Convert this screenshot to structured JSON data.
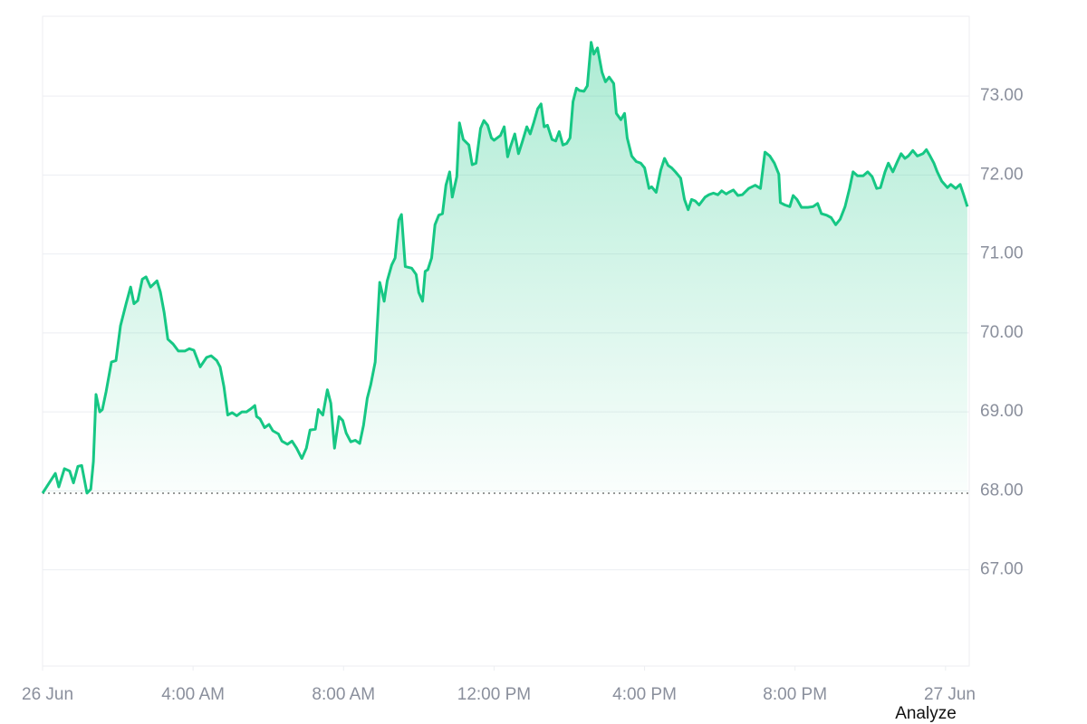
{
  "chart_data": {
    "type": "line",
    "color": "#16c784",
    "grid": true,
    "baseline": 67.97,
    "xlim": [
      0,
      24.63
    ],
    "ylim": [
      65.78,
      74.01
    ],
    "xticks": [
      {
        "value": 0,
        "label": "26 Jun"
      },
      {
        "value": 4,
        "label": "4:00 AM"
      },
      {
        "value": 8,
        "label": "8:00 AM"
      },
      {
        "value": 12,
        "label": "12:00 PM"
      },
      {
        "value": 16,
        "label": "4:00 PM"
      },
      {
        "value": 20,
        "label": "8:00 PM"
      },
      {
        "value": 24,
        "label": "27 Jun"
      }
    ],
    "yticks": [
      {
        "value": 67,
        "label": "67.00"
      },
      {
        "value": 68,
        "label": "68.00"
      },
      {
        "value": 69,
        "label": "69.00"
      },
      {
        "value": 70,
        "label": "70.00"
      },
      {
        "value": 71,
        "label": "71.00"
      },
      {
        "value": 72,
        "label": "72.00"
      },
      {
        "value": 73,
        "label": "73.00"
      }
    ],
    "x": [
      0,
      0.34,
      0.43,
      0.58,
      0.72,
      0.82,
      0.94,
      1.04,
      1.18,
      1.28,
      1.35,
      1.42,
      1.52,
      1.59,
      1.69,
      1.83,
      1.95,
      2.07,
      2.22,
      2.34,
      2.43,
      2.53,
      2.65,
      2.75,
      2.87,
      3.04,
      3.13,
      3.23,
      3.33,
      3.47,
      3.61,
      3.78,
      3.9,
      4.02,
      4.19,
      4.36,
      4.48,
      4.63,
      4.72,
      4.82,
      4.92,
      5.04,
      5.16,
      5.3,
      5.42,
      5.54,
      5.64,
      5.69,
      5.78,
      5.9,
      6.02,
      6.12,
      6.27,
      6.36,
      6.51,
      6.63,
      6.75,
      6.89,
      7.01,
      7.11,
      7.25,
      7.33,
      7.45,
      7.57,
      7.66,
      7.76,
      7.88,
      7.98,
      8.07,
      8.19,
      8.31,
      8.43,
      8.53,
      8.63,
      8.72,
      8.84,
      8.96,
      9.08,
      9.16,
      9.28,
      9.37,
      9.47,
      9.54,
      9.64,
      9.81,
      9.93,
      10.0,
      10.1,
      10.17,
      10.24,
      10.34,
      10.43,
      10.53,
      10.63,
      10.72,
      10.82,
      10.89,
      11.01,
      11.08,
      11.18,
      11.33,
      11.42,
      11.52,
      11.64,
      11.73,
      11.83,
      11.93,
      12.0,
      12.17,
      12.27,
      12.36,
      12.43,
      12.55,
      12.65,
      12.75,
      12.87,
      12.96,
      13.06,
      13.16,
      13.25,
      13.33,
      13.42,
      13.54,
      13.64,
      13.73,
      13.83,
      13.93,
      14.02,
      14.1,
      14.19,
      14.27,
      14.39,
      14.48,
      14.58,
      14.65,
      14.75,
      14.87,
      14.96,
      15.06,
      15.18,
      15.25,
      15.37,
      15.47,
      15.54,
      15.66,
      15.78,
      15.9,
      16.0,
      16.12,
      16.19,
      16.31,
      16.43,
      16.53,
      16.63,
      16.72,
      16.82,
      16.96,
      17.06,
      17.16,
      17.25,
      17.35,
      17.45,
      17.61,
      17.71,
      17.83,
      17.95,
      18.05,
      18.17,
      18.24,
      18.36,
      18.48,
      18.6,
      18.77,
      18.94,
      19.08,
      19.2,
      19.33,
      19.45,
      19.57,
      19.61,
      19.73,
      19.86,
      19.95,
      20.05,
      20.17,
      20.34,
      20.48,
      20.6,
      20.7,
      20.84,
      20.96,
      21.08,
      21.2,
      21.33,
      21.45,
      21.54,
      21.66,
      21.81,
      21.93,
      22.05,
      22.17,
      22.27,
      22.39,
      22.48,
      22.6,
      22.72,
      22.82,
      22.92,
      23.01,
      23.13,
      23.25,
      23.4,
      23.49,
      23.59,
      23.69,
      23.78,
      23.9,
      24.05,
      24.14,
      24.27,
      24.39,
      24.48,
      24.58
    ],
    "values": [
      67.97,
      68.22,
      68.05,
      68.28,
      68.25,
      68.1,
      68.31,
      68.32,
      67.97,
      68.02,
      68.37,
      69.22,
      69.0,
      69.03,
      69.26,
      69.63,
      69.65,
      70.09,
      70.37,
      70.58,
      70.37,
      70.41,
      70.68,
      70.71,
      70.58,
      70.66,
      70.52,
      70.26,
      69.92,
      69.86,
      69.77,
      69.77,
      69.8,
      69.78,
      69.57,
      69.69,
      69.71,
      69.65,
      69.57,
      69.32,
      68.96,
      68.99,
      68.95,
      69.0,
      69.0,
      69.04,
      69.08,
      68.94,
      68.91,
      68.8,
      68.84,
      68.76,
      68.72,
      68.63,
      68.59,
      68.63,
      68.54,
      68.41,
      68.54,
      68.77,
      68.78,
      69.03,
      68.96,
      69.28,
      69.11,
      68.54,
      68.94,
      68.89,
      68.73,
      68.62,
      68.64,
      68.6,
      68.83,
      69.17,
      69.34,
      69.63,
      70.64,
      70.4,
      70.66,
      70.86,
      70.95,
      71.43,
      71.5,
      70.84,
      70.82,
      70.74,
      70.51,
      70.4,
      70.78,
      70.8,
      70.95,
      71.37,
      71.49,
      71.51,
      71.87,
      72.04,
      71.72,
      71.98,
      72.66,
      72.45,
      72.38,
      72.13,
      72.15,
      72.59,
      72.69,
      72.63,
      72.47,
      72.44,
      72.5,
      72.61,
      72.23,
      72.35,
      72.52,
      72.27,
      72.42,
      72.61,
      72.52,
      72.67,
      72.84,
      72.9,
      72.61,
      72.63,
      72.45,
      72.43,
      72.55,
      72.38,
      72.4,
      72.47,
      72.93,
      73.1,
      73.07,
      73.06,
      73.13,
      73.68,
      73.53,
      73.61,
      73.3,
      73.18,
      73.24,
      73.16,
      72.78,
      72.7,
      72.78,
      72.47,
      72.24,
      72.17,
      72.15,
      72.09,
      71.83,
      71.85,
      71.78,
      72.06,
      72.21,
      72.12,
      72.09,
      72.04,
      71.96,
      71.69,
      71.56,
      71.69,
      71.67,
      71.62,
      71.72,
      71.75,
      71.77,
      71.75,
      71.8,
      71.76,
      71.78,
      71.81,
      71.74,
      71.75,
      71.83,
      71.87,
      71.83,
      72.29,
      72.24,
      72.15,
      72.01,
      71.65,
      71.62,
      71.6,
      71.74,
      71.69,
      71.59,
      71.59,
      71.6,
      71.64,
      71.51,
      71.49,
      71.46,
      71.37,
      71.44,
      71.6,
      71.83,
      72.04,
      71.99,
      71.99,
      72.04,
      71.98,
      71.83,
      71.84,
      72.04,
      72.15,
      72.04,
      72.17,
      72.27,
      72.21,
      72.24,
      72.31,
      72.24,
      72.27,
      72.32,
      72.24,
      72.15,
      72.04,
      71.92,
      71.84,
      71.88,
      71.83,
      71.88,
      71.75,
      71.6
    ]
  },
  "footer": {
    "button": "Analyze"
  }
}
